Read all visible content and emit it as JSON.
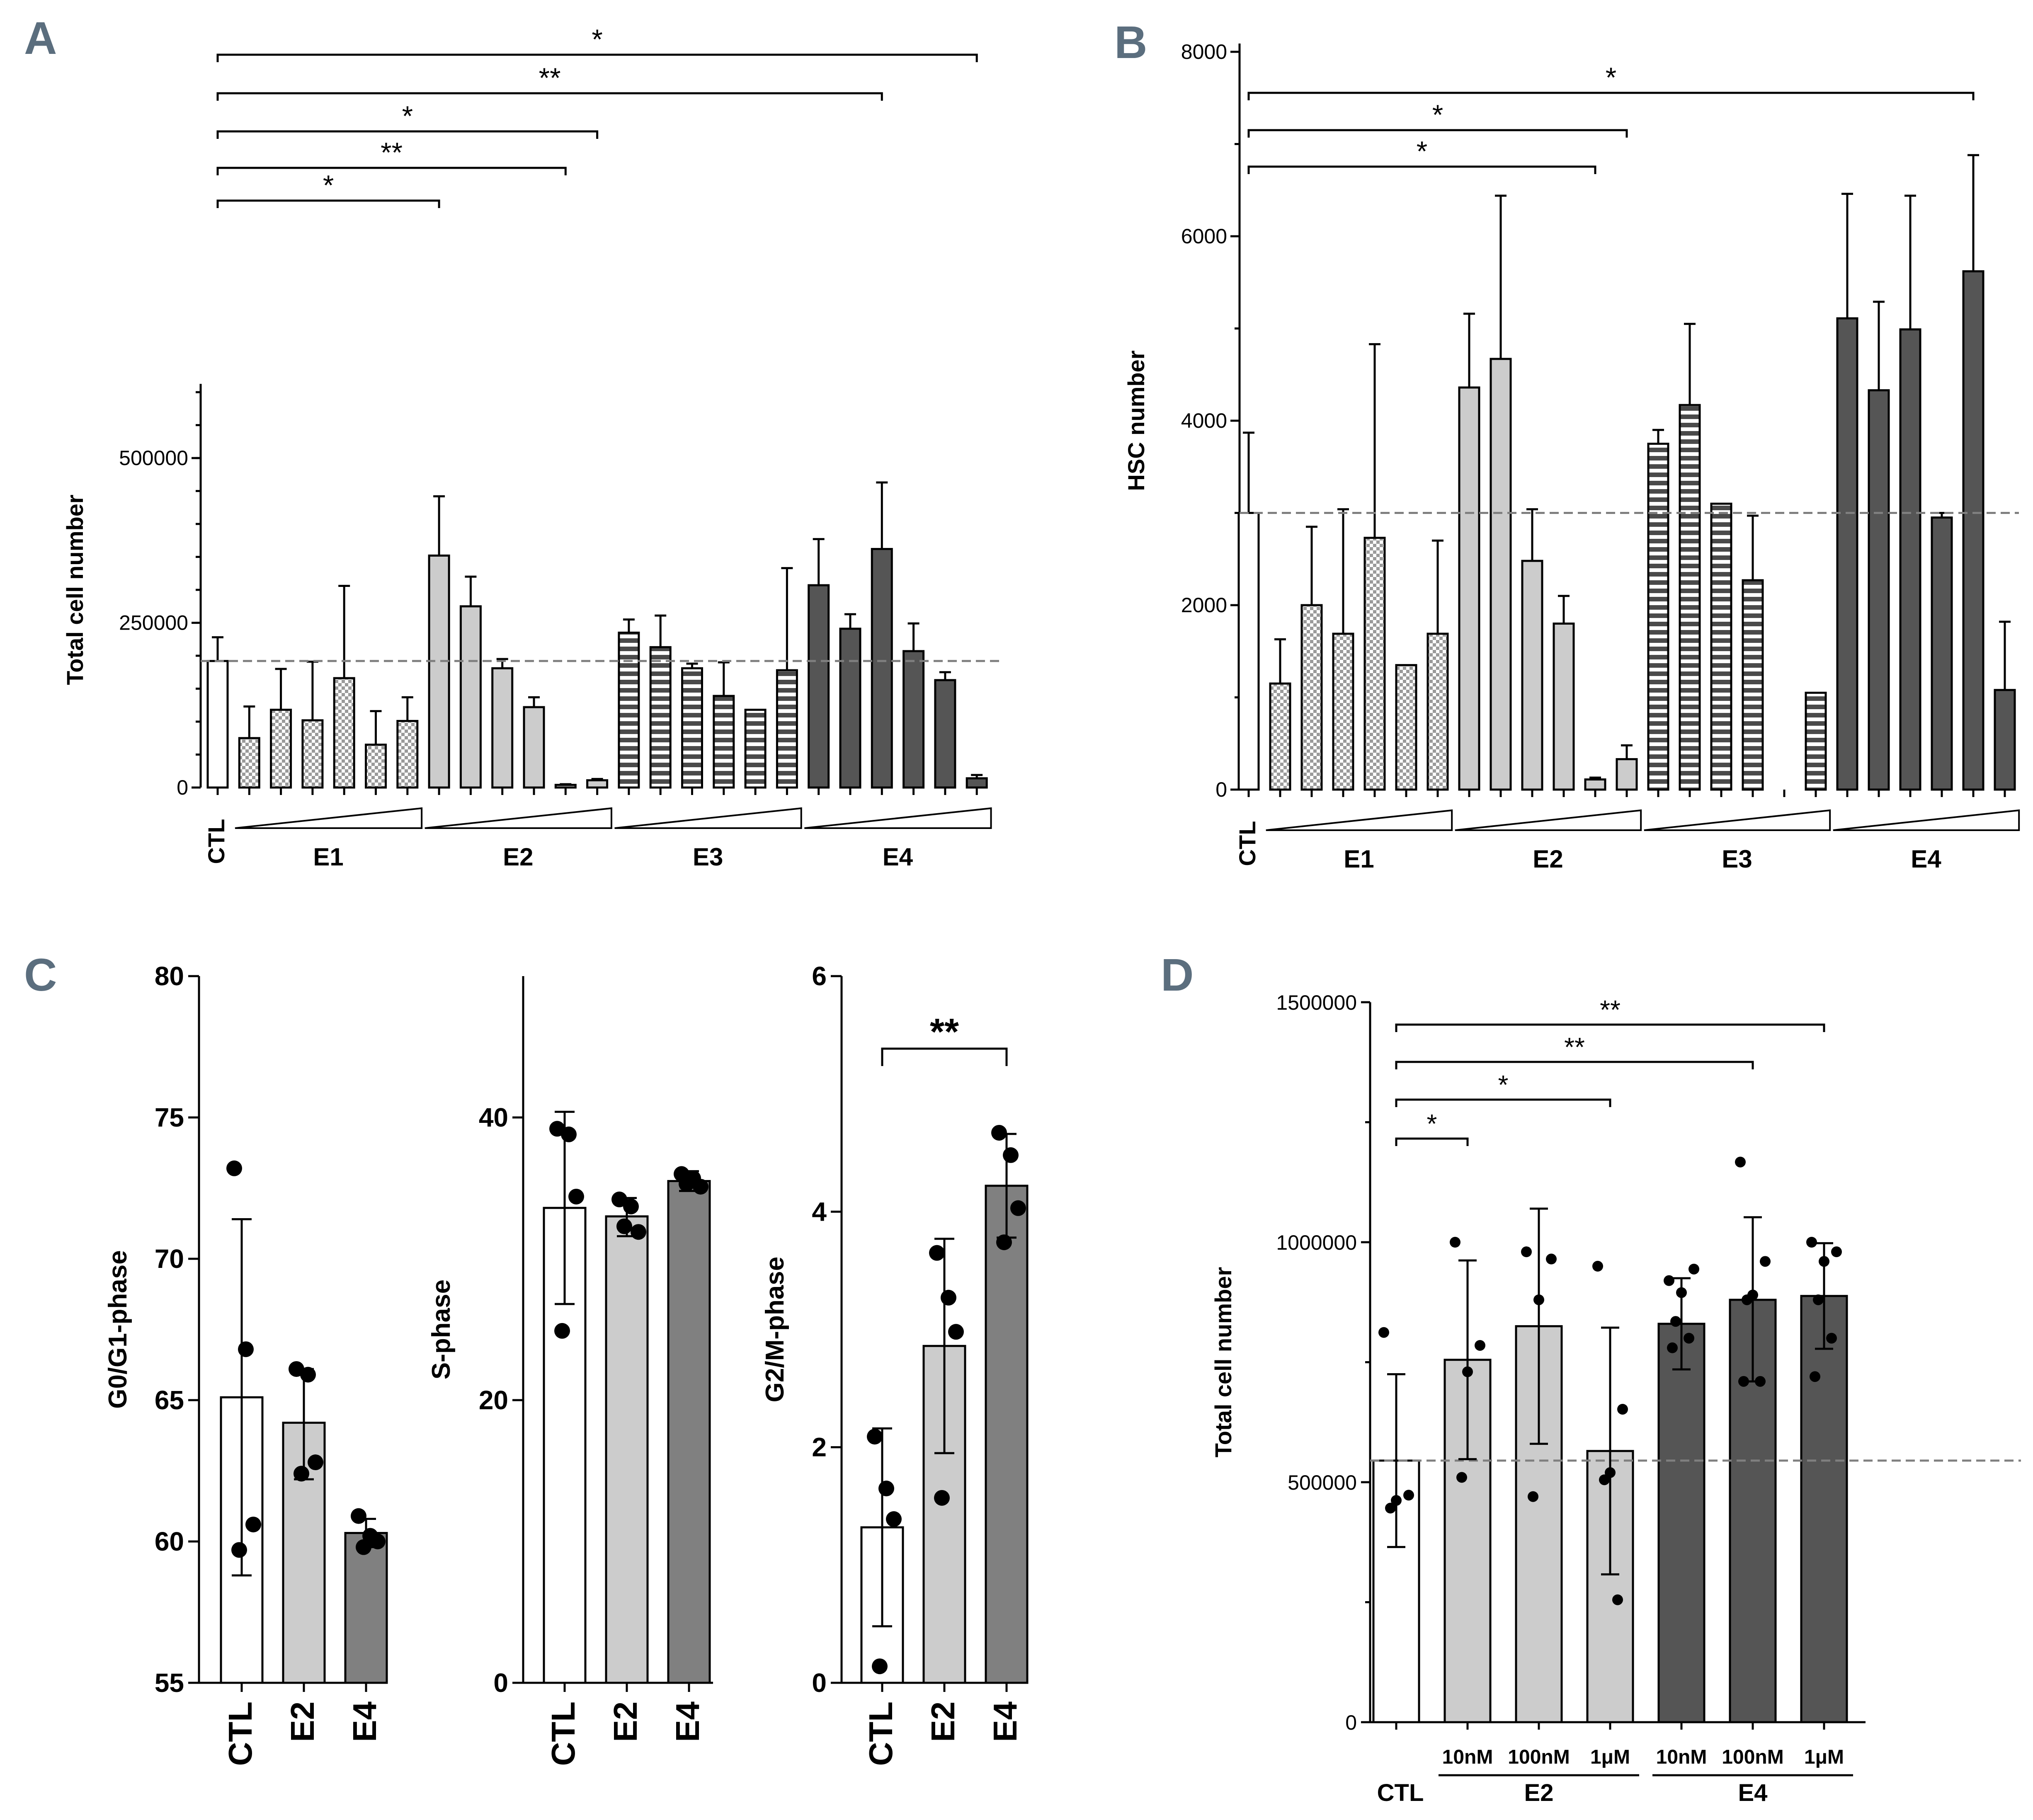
{
  "panels": {
    "A": "A",
    "B": "B",
    "C": "C",
    "D": "D"
  },
  "colors": {
    "ctl": "#ffffff",
    "e1": "#c8c8c8",
    "e2": "#cccccc",
    "e3": "#555555",
    "e4": "#555555",
    "c_e4": "#808080",
    "dash": "#7f7f7f"
  },
  "chart_data": [
    {
      "id": "A",
      "type": "bar",
      "ylabel": "Total cell number",
      "ylim": [
        0,
        600000
      ],
      "yticks": [
        0,
        250000,
        500000
      ],
      "ytick_labels": [
        "0",
        "250000",
        "500000"
      ],
      "ctl_label": "CTL",
      "group_labels": [
        "E1",
        "E2",
        "E3",
        "E4"
      ],
      "reference_line": 192000,
      "series": [
        {
          "name": "CTL",
          "pattern": "white",
          "values": [
            192000
          ],
          "errors": [
            228000
          ]
        },
        {
          "name": "E1",
          "pattern": "checker",
          "values": [
            75000,
            118000,
            102000,
            166000,
            65000,
            101000
          ],
          "errors": [
            123000,
            180000,
            191000,
            306000,
            116000,
            137000
          ]
        },
        {
          "name": "E2",
          "pattern": "light",
          "values": [
            352000,
            275000,
            181000,
            122000,
            4000,
            11000
          ],
          "errors": [
            442000,
            320000,
            195000,
            137000,
            5000,
            13000
          ]
        },
        {
          "name": "E3",
          "pattern": "stripes",
          "values": [
            235000,
            213000,
            181000,
            139000,
            118000,
            178000
          ],
          "errors": [
            255000,
            261000,
            188000,
            190000,
            118000,
            333000
          ]
        },
        {
          "name": "E4",
          "pattern": "dark",
          "values": [
            307000,
            241000,
            362000,
            207000,
            163000,
            14000
          ],
          "errors": [
            377000,
            263000,
            463000,
            249000,
            175000,
            19000
          ]
        }
      ],
      "significance": [
        {
          "label": "*",
          "from": 0,
          "to": 7
        },
        {
          "label": "**",
          "from": 0,
          "to": 11
        },
        {
          "label": "*",
          "from": 0,
          "to": 12
        },
        {
          "label": "**",
          "from": 0,
          "to": 21
        },
        {
          "label": "*",
          "from": 0,
          "to": 24
        }
      ]
    },
    {
      "id": "B",
      "type": "bar",
      "ylabel": "HSC number",
      "ylim": [
        0,
        8000
      ],
      "yticks": [
        0,
        2000,
        4000,
        6000,
        8000
      ],
      "ytick_labels": [
        "0",
        "2000",
        "4000",
        "6000",
        "8000"
      ],
      "ctl_label": "CTL",
      "group_labels": [
        "E1",
        "E2",
        "E3",
        "E4"
      ],
      "reference_line": 3000,
      "series": [
        {
          "name": "CTL",
          "pattern": "white",
          "values": [
            3000
          ],
          "errors": [
            3870
          ]
        },
        {
          "name": "E1",
          "pattern": "checker",
          "values": [
            1150,
            2000,
            1690,
            2730,
            1350,
            1690
          ],
          "errors": [
            1630,
            2850,
            3040,
            4830,
            1350,
            2700
          ]
        },
        {
          "name": "E2",
          "pattern": "light",
          "values": [
            4360,
            4670,
            2480,
            1800,
            110,
            330
          ],
          "errors": [
            5160,
            6440,
            3040,
            2100,
            130,
            480
          ]
        },
        {
          "name": "E3",
          "pattern": "stripes",
          "values": [
            3750,
            4170,
            3100,
            2270,
            0,
            1050
          ],
          "errors": [
            3900,
            5050,
            3100,
            2970,
            0,
            1050
          ]
        },
        {
          "name": "E4",
          "pattern": "dark",
          "values": [
            5110,
            4330,
            4990,
            2950,
            5620,
            1080
          ],
          "errors": [
            6460,
            5290,
            6440,
            3000,
            6880,
            1820
          ]
        }
      ],
      "significance": [
        {
          "label": "*",
          "from": 0,
          "to": 11
        },
        {
          "label": "*",
          "from": 0,
          "to": 12
        },
        {
          "label": "*",
          "from": 0,
          "to": 23
        }
      ]
    },
    {
      "id": "C1",
      "type": "bar",
      "ylabel": "G0/G1-phase",
      "ylim": [
        55,
        80
      ],
      "yticks": [
        55,
        60,
        65,
        70,
        75,
        80
      ],
      "ytick_labels": [
        "55",
        "60",
        "65",
        "70",
        "75",
        "80"
      ],
      "categories": [
        "CTL",
        "E2",
        "E4"
      ],
      "values": [
        65.1,
        64.2,
        60.3
      ],
      "err_low": [
        58.8,
        62.2,
        59.8
      ],
      "err_high": [
        71.4,
        66.1,
        60.8
      ],
      "points": [
        [
          73.2,
          66.8,
          60.6,
          59.7
        ],
        [
          66.1,
          65.9,
          62.8,
          62.4
        ],
        [
          60.9,
          60.2,
          60.0,
          59.8
        ]
      ]
    },
    {
      "id": "C2",
      "type": "bar",
      "ylabel": "S-phase",
      "ylim": [
        0,
        50
      ],
      "yticks": [
        0,
        20,
        40
      ],
      "ytick_labels": [
        "0",
        "20",
        "40"
      ],
      "categories": [
        "CTL",
        "E2",
        "E4"
      ],
      "values": [
        33.6,
        33.0,
        35.5
      ],
      "err_low": [
        26.8,
        31.6,
        34.8
      ],
      "err_high": [
        40.4,
        34.3,
        36.2
      ],
      "points": [
        [
          39.2,
          38.8,
          34.4,
          24.9
        ],
        [
          34.2,
          33.7,
          31.9,
          32.3
        ],
        [
          36.0,
          35.7,
          35.1,
          35.3
        ]
      ]
    },
    {
      "id": "C3",
      "type": "bar",
      "ylabel": "G2/M-phase",
      "ylim": [
        0,
        6
      ],
      "yticks": [
        0,
        2,
        4,
        6
      ],
      "ytick_labels": [
        "0",
        "2",
        "4",
        "6"
      ],
      "categories": [
        "CTL",
        "E2",
        "E4"
      ],
      "values": [
        1.32,
        2.86,
        4.22
      ],
      "err_low": [
        0.48,
        1.95,
        3.78
      ],
      "err_high": [
        2.16,
        3.77,
        4.66
      ],
      "points": [
        [
          2.09,
          1.65,
          1.39,
          0.14
        ],
        [
          3.65,
          3.27,
          2.98,
          1.57
        ],
        [
          4.67,
          4.48,
          4.03,
          3.74
        ]
      ],
      "significance": [
        {
          "label": "**",
          "from": 0,
          "to": 2
        }
      ]
    },
    {
      "id": "D",
      "type": "bar",
      "ylabel": "Total cell number",
      "ylim": [
        0,
        1500000
      ],
      "yticks": [
        0,
        500000,
        1000000,
        1500000
      ],
      "ytick_labels": [
        "0",
        "500000",
        "1000000",
        "1500000"
      ],
      "categories": [
        "CTL",
        "10nM",
        "100nM",
        "1μM",
        "10nM",
        "100nM",
        "1μM"
      ],
      "group_labels": [
        "CTL",
        "E2",
        "E4"
      ],
      "values": [
        545000,
        755000,
        825000,
        565000,
        830000,
        880000,
        888000
      ],
      "err_low": [
        365000,
        548000,
        580000,
        308000,
        735000,
        710000,
        778000
      ],
      "err_high": [
        725000,
        962000,
        1070000,
        822000,
        925000,
        1052000,
        998000
      ],
      "points": [
        [
          812000,
          473000,
          462000,
          446000
        ],
        [
          1000000,
          785000,
          730000,
          510000
        ],
        [
          980000,
          965000,
          880000,
          470000
        ],
        [
          950000,
          652000,
          520000,
          505000,
          255000
        ],
        [
          920000,
          944000,
          895000,
          835000,
          800000,
          780000
        ],
        [
          1167000,
          960000,
          890000,
          880000,
          710000,
          710000
        ],
        [
          1000000,
          980000,
          960000,
          880000,
          800000,
          720000
        ]
      ],
      "reference_line": 545000,
      "significance": [
        {
          "label": "*",
          "from": 0,
          "to": 1
        },
        {
          "label": "*",
          "from": 0,
          "to": 3
        },
        {
          "label": "**",
          "from": 0,
          "to": 5
        },
        {
          "label": "**",
          "from": 0,
          "to": 6
        }
      ]
    }
  ]
}
